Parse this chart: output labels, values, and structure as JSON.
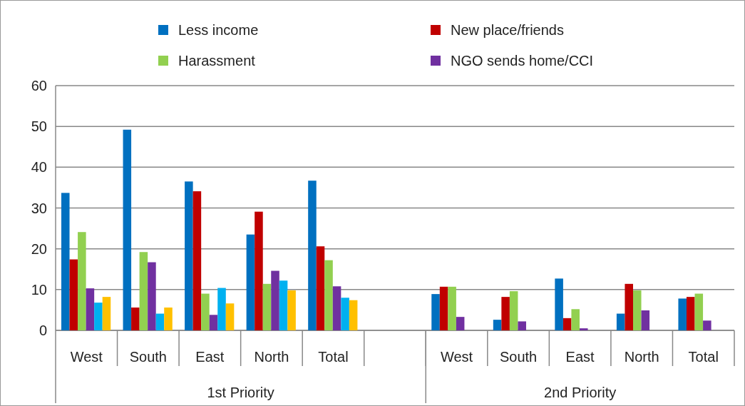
{
  "chart_data": {
    "type": "bar",
    "categories": [
      "West",
      "South",
      "East",
      "North",
      "Total",
      null,
      "West",
      "South",
      "East",
      "North",
      "Total"
    ],
    "series": [
      {
        "name": "Less income",
        "color": "#0070c0",
        "values": [
          33.7,
          49.2,
          36.5,
          23.5,
          36.7,
          null,
          8.9,
          2.6,
          12.7,
          4.1,
          7.8
        ]
      },
      {
        "name": "New place/friends",
        "color": "#c00000",
        "values": [
          17.4,
          5.6,
          34.1,
          29.1,
          20.6,
          null,
          10.7,
          8.2,
          3.0,
          11.4,
          8.2
        ]
      },
      {
        "name": "Harassment",
        "color": "#92d050",
        "values": [
          24.1,
          19.2,
          9.0,
          11.4,
          17.2,
          null,
          10.7,
          9.6,
          5.2,
          9.8,
          9.0
        ]
      },
      {
        "name": "NGO sends home/CCI",
        "color": "#7030a0",
        "values": [
          10.3,
          16.7,
          3.8,
          14.6,
          10.8,
          null,
          3.3,
          2.2,
          0.5,
          4.9,
          2.4
        ]
      },
      {
        "color": "#00b0f0",
        "values": [
          6.8,
          4.1,
          10.4,
          12.2,
          8.0,
          null,
          null,
          null,
          null,
          null,
          null
        ]
      },
      {
        "color": "#ffc000",
        "values": [
          8.2,
          5.6,
          6.6,
          9.8,
          7.4,
          null,
          null,
          null,
          null,
          null,
          null
        ]
      }
    ],
    "ylim": [
      0,
      60
    ],
    "yticks": [
      0,
      10,
      20,
      30,
      40,
      50,
      60
    ],
    "grid": "y",
    "legend": "top",
    "annotations": [
      "1st Priority",
      "2nd Priority"
    ]
  }
}
